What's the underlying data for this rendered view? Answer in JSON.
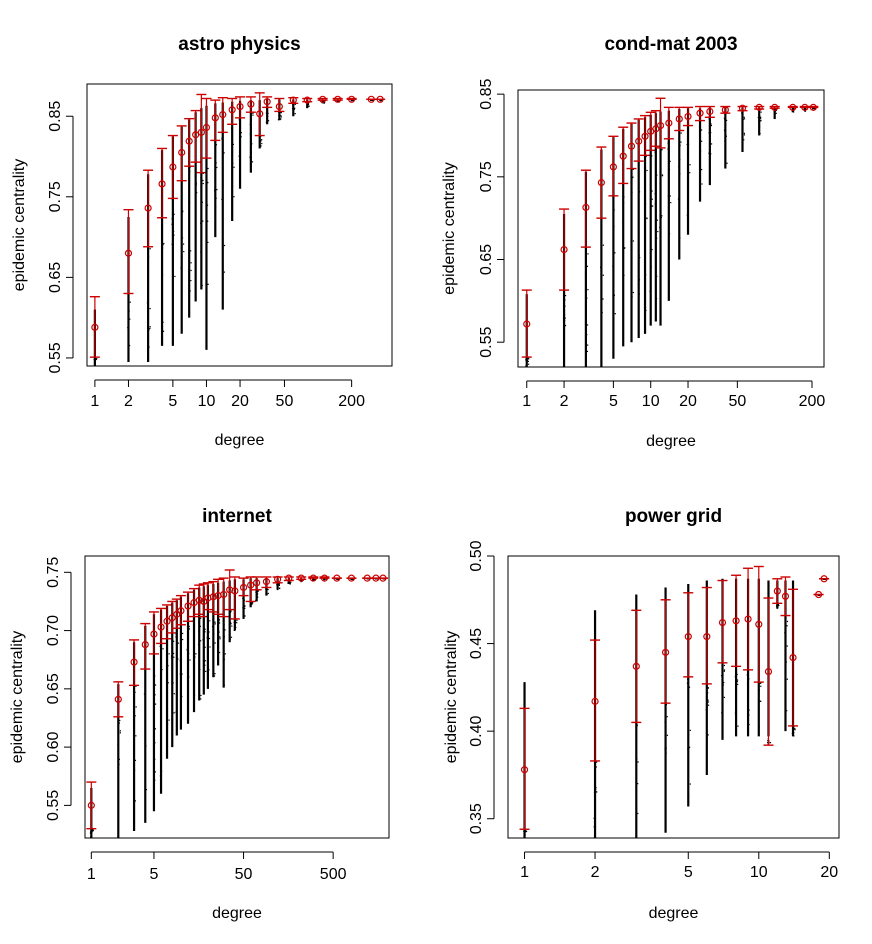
{
  "colors": {
    "mean": "#cc0000",
    "range": "#000000",
    "dots": "#000000"
  },
  "chart_data": [
    {
      "type": "scatter",
      "title": "astro physics",
      "xlabel": "degree",
      "ylabel": "epidemic centrality",
      "xscale": "log",
      "xlim": [
        0.85,
        460
      ],
      "ylim": [
        0.54,
        0.89
      ],
      "xticks": [
        1,
        2,
        5,
        10,
        20,
        50,
        200
      ],
      "xtick_labels": [
        "1",
        "2",
        "5",
        "10",
        "20",
        "50",
        "200"
      ],
      "yticks": [
        0.55,
        0.65,
        0.75,
        0.85
      ],
      "ytick_labels": [
        "0.55",
        "0.65",
        "0.75",
        "0.85"
      ],
      "series": [
        {
          "x": 1,
          "mean": 0.588,
          "lo": 0.551,
          "hi": 0.626,
          "min": 0.54,
          "max": 0.61
        },
        {
          "x": 2,
          "mean": 0.68,
          "lo": 0.63,
          "hi": 0.734,
          "min": 0.545,
          "max": 0.725
        },
        {
          "x": 3,
          "mean": 0.736,
          "lo": 0.688,
          "hi": 0.783,
          "min": 0.545,
          "max": 0.778
        },
        {
          "x": 4,
          "mean": 0.766,
          "lo": 0.724,
          "hi": 0.81,
          "min": 0.565,
          "max": 0.808
        },
        {
          "x": 5,
          "mean": 0.787,
          "lo": 0.748,
          "hi": 0.826,
          "min": 0.565,
          "max": 0.825
        },
        {
          "x": 6,
          "mean": 0.805,
          "lo": 0.77,
          "hi": 0.838,
          "min": 0.58,
          "max": 0.837
        },
        {
          "x": 7,
          "mean": 0.819,
          "lo": 0.788,
          "hi": 0.847,
          "min": 0.6,
          "max": 0.846
        },
        {
          "x": 8,
          "mean": 0.827,
          "lo": 0.793,
          "hi": 0.857,
          "min": 0.62,
          "max": 0.855
        },
        {
          "x": 9,
          "mean": 0.83,
          "lo": 0.78,
          "hi": 0.877,
          "min": 0.635,
          "max": 0.86
        },
        {
          "x": 10,
          "mean": 0.836,
          "lo": 0.798,
          "hi": 0.872,
          "min": 0.56,
          "max": 0.863
        },
        {
          "x": 12,
          "mean": 0.848,
          "lo": 0.82,
          "hi": 0.87,
          "min": 0.7,
          "max": 0.866
        },
        {
          "x": 14,
          "mean": 0.852,
          "lo": 0.83,
          "hi": 0.873,
          "min": 0.61,
          "max": 0.867
        },
        {
          "x": 17,
          "mean": 0.858,
          "lo": 0.84,
          "hi": 0.872,
          "min": 0.72,
          "max": 0.868
        },
        {
          "x": 20,
          "mean": 0.862,
          "lo": 0.848,
          "hi": 0.874,
          "min": 0.76,
          "max": 0.869
        },
        {
          "x": 25,
          "mean": 0.865,
          "lo": 0.855,
          "hi": 0.874,
          "min": 0.78,
          "max": 0.87
        },
        {
          "x": 30,
          "mean": 0.853,
          "lo": 0.826,
          "hi": 0.879,
          "min": 0.81,
          "max": 0.87
        },
        {
          "x": 35,
          "mean": 0.868,
          "lo": 0.861,
          "hi": 0.874,
          "min": 0.84,
          "max": 0.871
        },
        {
          "x": 45,
          "mean": 0.862,
          "lo": 0.856,
          "hi": 0.872,
          "min": 0.845,
          "max": 0.871
        },
        {
          "x": 60,
          "mean": 0.87,
          "lo": 0.866,
          "hi": 0.873,
          "min": 0.85,
          "max": 0.871
        },
        {
          "x": 80,
          "mean": 0.87,
          "lo": 0.868,
          "hi": 0.872,
          "min": 0.86,
          "max": 0.871
        },
        {
          "x": 110,
          "mean": 0.871,
          "lo": 0.87,
          "hi": 0.872,
          "min": 0.866,
          "max": 0.871
        },
        {
          "x": 150,
          "mean": 0.871,
          "lo": 0.87,
          "hi": 0.872,
          "min": 0.868,
          "max": 0.871
        },
        {
          "x": 200,
          "mean": 0.871,
          "lo": 0.871,
          "hi": 0.872,
          "min": 0.87,
          "max": 0.871
        },
        {
          "x": 300,
          "mean": 0.871,
          "lo": 0.871,
          "hi": 0.871,
          "min": 0.87,
          "max": 0.871
        },
        {
          "x": 360,
          "mean": 0.871,
          "lo": 0.871,
          "hi": 0.871,
          "min": 0.87,
          "max": 0.871
        }
      ]
    },
    {
      "type": "scatter",
      "title": "cond-mat 2003",
      "xlabel": "degree",
      "ylabel": "epidemic centrality",
      "xscale": "log",
      "xlim": [
        0.85,
        250
      ],
      "ylim": [
        0.52,
        0.855
      ],
      "xticks": [
        1,
        2,
        5,
        10,
        20,
        50,
        200
      ],
      "xtick_labels": [
        "1",
        "2",
        "5",
        "10",
        "20",
        "50",
        "200"
      ],
      "yticks": [
        0.55,
        0.65,
        0.75,
        0.85
      ],
      "ytick_labels": [
        "0.55",
        "0.65",
        "0.75",
        "0.85"
      ],
      "series": [
        {
          "x": 1,
          "mean": 0.572,
          "lo": 0.532,
          "hi": 0.613,
          "min": 0.52,
          "max": 0.608
        },
        {
          "x": 2,
          "mean": 0.662,
          "lo": 0.613,
          "hi": 0.711,
          "min": 0.52,
          "max": 0.705
        },
        {
          "x": 3,
          "mean": 0.713,
          "lo": 0.665,
          "hi": 0.758,
          "min": 0.52,
          "max": 0.756
        },
        {
          "x": 4,
          "mean": 0.743,
          "lo": 0.7,
          "hi": 0.786,
          "min": 0.52,
          "max": 0.783
        },
        {
          "x": 5,
          "mean": 0.762,
          "lo": 0.727,
          "hi": 0.799,
          "min": 0.53,
          "max": 0.798
        },
        {
          "x": 6,
          "mean": 0.775,
          "lo": 0.742,
          "hi": 0.81,
          "min": 0.545,
          "max": 0.808
        },
        {
          "x": 7,
          "mean": 0.787,
          "lo": 0.76,
          "hi": 0.815,
          "min": 0.55,
          "max": 0.814
        },
        {
          "x": 8,
          "mean": 0.793,
          "lo": 0.769,
          "hi": 0.82,
          "min": 0.555,
          "max": 0.819
        },
        {
          "x": 9,
          "mean": 0.799,
          "lo": 0.776,
          "hi": 0.824,
          "min": 0.56,
          "max": 0.822
        },
        {
          "x": 10,
          "mean": 0.805,
          "lo": 0.782,
          "hi": 0.828,
          "min": 0.57,
          "max": 0.825
        },
        {
          "x": 11,
          "mean": 0.808,
          "lo": 0.787,
          "hi": 0.83,
          "min": 0.575,
          "max": 0.827
        },
        {
          "x": 12,
          "mean": 0.812,
          "lo": 0.785,
          "hi": 0.845,
          "min": 0.57,
          "max": 0.829
        },
        {
          "x": 14,
          "mean": 0.815,
          "lo": 0.796,
          "hi": 0.834,
          "min": 0.6,
          "max": 0.83
        },
        {
          "x": 17,
          "mean": 0.82,
          "lo": 0.806,
          "hi": 0.834,
          "min": 0.65,
          "max": 0.832
        },
        {
          "x": 20,
          "mean": 0.823,
          "lo": 0.812,
          "hi": 0.834,
          "min": 0.68,
          "max": 0.833
        },
        {
          "x": 25,
          "mean": 0.827,
          "lo": 0.818,
          "hi": 0.835,
          "min": 0.72,
          "max": 0.833
        },
        {
          "x": 30,
          "mean": 0.829,
          "lo": 0.822,
          "hi": 0.835,
          "min": 0.74,
          "max": 0.834
        },
        {
          "x": 40,
          "mean": 0.831,
          "lo": 0.827,
          "hi": 0.835,
          "min": 0.76,
          "max": 0.834
        },
        {
          "x": 55,
          "mean": 0.833,
          "lo": 0.83,
          "hi": 0.835,
          "min": 0.78,
          "max": 0.834
        },
        {
          "x": 75,
          "mean": 0.834,
          "lo": 0.832,
          "hi": 0.835,
          "min": 0.8,
          "max": 0.834
        },
        {
          "x": 100,
          "mean": 0.834,
          "lo": 0.833,
          "hi": 0.835,
          "min": 0.82,
          "max": 0.834
        },
        {
          "x": 140,
          "mean": 0.834,
          "lo": 0.834,
          "hi": 0.835,
          "min": 0.828,
          "max": 0.834
        },
        {
          "x": 175,
          "mean": 0.834,
          "lo": 0.834,
          "hi": 0.835,
          "min": 0.83,
          "max": 0.834
        },
        {
          "x": 205,
          "mean": 0.834,
          "lo": 0.834,
          "hi": 0.835,
          "min": 0.832,
          "max": 0.834
        }
      ]
    },
    {
      "type": "scatter",
      "title": "internet",
      "xlabel": "degree",
      "ylabel": "epidemic centrality",
      "xscale": "log",
      "xlim": [
        0.85,
        2100
      ],
      "ylim": [
        0.522,
        0.764
      ],
      "xticks": [
        1,
        5,
        50,
        500
      ],
      "xtick_labels": [
        "1",
        "5",
        "50",
        "500"
      ],
      "yticks": [
        0.55,
        0.6,
        0.65,
        0.7,
        0.75
      ],
      "ytick_labels": [
        "0.55",
        "0.60",
        "0.65",
        "0.70",
        "0.75"
      ],
      "series": [
        {
          "x": 1,
          "mean": 0.55,
          "lo": 0.53,
          "hi": 0.57,
          "min": 0.522,
          "max": 0.565
        },
        {
          "x": 2,
          "mean": 0.641,
          "lo": 0.626,
          "hi": 0.656,
          "min": 0.522,
          "max": 0.654
        },
        {
          "x": 3,
          "mean": 0.673,
          "lo": 0.653,
          "hi": 0.692,
          "min": 0.528,
          "max": 0.69
        },
        {
          "x": 4,
          "mean": 0.688,
          "lo": 0.667,
          "hi": 0.706,
          "min": 0.535,
          "max": 0.704
        },
        {
          "x": 5,
          "mean": 0.697,
          "lo": 0.68,
          "hi": 0.716,
          "min": 0.545,
          "max": 0.714
        },
        {
          "x": 6,
          "mean": 0.703,
          "lo": 0.689,
          "hi": 0.719,
          "min": 0.56,
          "max": 0.718
        },
        {
          "x": 7,
          "mean": 0.708,
          "lo": 0.693,
          "hi": 0.722,
          "min": 0.59,
          "max": 0.721
        },
        {
          "x": 8,
          "mean": 0.711,
          "lo": 0.698,
          "hi": 0.725,
          "min": 0.6,
          "max": 0.724
        },
        {
          "x": 9,
          "mean": 0.714,
          "lo": 0.702,
          "hi": 0.727,
          "min": 0.61,
          "max": 0.726
        },
        {
          "x": 10,
          "mean": 0.717,
          "lo": 0.705,
          "hi": 0.73,
          "min": 0.615,
          "max": 0.729
        },
        {
          "x": 12,
          "mean": 0.721,
          "lo": 0.708,
          "hi": 0.733,
          "min": 0.62,
          "max": 0.732
        },
        {
          "x": 14,
          "mean": 0.724,
          "lo": 0.712,
          "hi": 0.736,
          "min": 0.63,
          "max": 0.735
        },
        {
          "x": 16,
          "mean": 0.726,
          "lo": 0.714,
          "hi": 0.739,
          "min": 0.64,
          "max": 0.737
        },
        {
          "x": 18,
          "mean": 0.725,
          "lo": 0.712,
          "hi": 0.74,
          "min": 0.645,
          "max": 0.738
        },
        {
          "x": 20,
          "mean": 0.728,
          "lo": 0.718,
          "hi": 0.741,
          "min": 0.65,
          "max": 0.739
        },
        {
          "x": 23,
          "mean": 0.729,
          "lo": 0.716,
          "hi": 0.742,
          "min": 0.66,
          "max": 0.74
        },
        {
          "x": 26,
          "mean": 0.73,
          "lo": 0.714,
          "hi": 0.744,
          "min": 0.67,
          "max": 0.741
        },
        {
          "x": 30,
          "mean": 0.731,
          "lo": 0.712,
          "hi": 0.745,
          "min": 0.651,
          "max": 0.742
        },
        {
          "x": 35,
          "mean": 0.735,
          "lo": 0.718,
          "hi": 0.752,
          "min": 0.69,
          "max": 0.743
        },
        {
          "x": 40,
          "mean": 0.734,
          "lo": 0.71,
          "hi": 0.746,
          "min": 0.7,
          "max": 0.744
        },
        {
          "x": 50,
          "mean": 0.737,
          "lo": 0.73,
          "hi": 0.745,
          "min": 0.71,
          "max": 0.744
        },
        {
          "x": 60,
          "mean": 0.739,
          "lo": 0.725,
          "hi": 0.746,
          "min": 0.72,
          "max": 0.745
        },
        {
          "x": 70,
          "mean": 0.741,
          "lo": 0.735,
          "hi": 0.746,
          "min": 0.725,
          "max": 0.745
        },
        {
          "x": 90,
          "mean": 0.742,
          "lo": 0.737,
          "hi": 0.746,
          "min": 0.73,
          "max": 0.745
        },
        {
          "x": 120,
          "mean": 0.744,
          "lo": 0.741,
          "hi": 0.746,
          "min": 0.735,
          "max": 0.745
        },
        {
          "x": 160,
          "mean": 0.745,
          "lo": 0.743,
          "hi": 0.746,
          "min": 0.74,
          "max": 0.745
        },
        {
          "x": 220,
          "mean": 0.745,
          "lo": 0.744,
          "hi": 0.746,
          "min": 0.742,
          "max": 0.745
        },
        {
          "x": 300,
          "mean": 0.745,
          "lo": 0.745,
          "hi": 0.746,
          "min": 0.743,
          "max": 0.745
        },
        {
          "x": 400,
          "mean": 0.745,
          "lo": 0.745,
          "hi": 0.746,
          "min": 0.744,
          "max": 0.745
        },
        {
          "x": 550,
          "mean": 0.745,
          "lo": 0.745,
          "hi": 0.745,
          "min": 0.744,
          "max": 0.745
        },
        {
          "x": 800,
          "mean": 0.745,
          "lo": 0.745,
          "hi": 0.745,
          "min": 0.744,
          "max": 0.745
        },
        {
          "x": 1200,
          "mean": 0.745,
          "lo": 0.745,
          "hi": 0.745,
          "min": 0.745,
          "max": 0.745
        },
        {
          "x": 1500,
          "mean": 0.745,
          "lo": 0.745,
          "hi": 0.745,
          "min": 0.745,
          "max": 0.745
        },
        {
          "x": 1800,
          "mean": 0.745,
          "lo": 0.745,
          "hi": 0.745,
          "min": 0.745,
          "max": 0.745
        }
      ]
    },
    {
      "type": "scatter",
      "title": "power grid",
      "xlabel": "degree",
      "ylabel": "epidemic centrality",
      "xscale": "log",
      "xlim": [
        0.85,
        22
      ],
      "ylim": [
        0.339,
        0.5
      ],
      "xticks": [
        1,
        2,
        5,
        10,
        20
      ],
      "xtick_labels": [
        "1",
        "2",
        "5",
        "10",
        "20"
      ],
      "yticks": [
        0.35,
        0.4,
        0.45,
        0.5
      ],
      "ytick_labels": [
        "0.35",
        "0.40",
        "0.45",
        "0.50"
      ],
      "series": [
        {
          "x": 1,
          "mean": 0.378,
          "lo": 0.344,
          "hi": 0.413,
          "min": 0.339,
          "max": 0.428
        },
        {
          "x": 2,
          "mean": 0.417,
          "lo": 0.383,
          "hi": 0.452,
          "min": 0.339,
          "max": 0.469
        },
        {
          "x": 3,
          "mean": 0.437,
          "lo": 0.405,
          "hi": 0.469,
          "min": 0.339,
          "max": 0.478
        },
        {
          "x": 4,
          "mean": 0.445,
          "lo": 0.416,
          "hi": 0.475,
          "min": 0.342,
          "max": 0.482
        },
        {
          "x": 5,
          "mean": 0.454,
          "lo": 0.431,
          "hi": 0.479,
          "min": 0.357,
          "max": 0.484
        },
        {
          "x": 6,
          "mean": 0.454,
          "lo": 0.427,
          "hi": 0.482,
          "min": 0.375,
          "max": 0.486
        },
        {
          "x": 7,
          "mean": 0.462,
          "lo": 0.439,
          "hi": 0.486,
          "min": 0.395,
          "max": 0.487
        },
        {
          "x": 8,
          "mean": 0.463,
          "lo": 0.437,
          "hi": 0.489,
          "min": 0.397,
          "max": 0.487
        },
        {
          "x": 9,
          "mean": 0.464,
          "lo": 0.435,
          "hi": 0.493,
          "min": 0.397,
          "max": 0.487
        },
        {
          "x": 10,
          "mean": 0.461,
          "lo": 0.428,
          "hi": 0.494,
          "min": 0.397,
          "max": 0.487
        },
        {
          "x": 11,
          "mean": 0.434,
          "lo": 0.392,
          "hi": 0.476,
          "min": 0.397,
          "max": 0.486
        },
        {
          "x": 12,
          "mean": 0.48,
          "lo": 0.473,
          "hi": 0.487,
          "min": 0.47,
          "max": 0.486
        },
        {
          "x": 13,
          "mean": 0.477,
          "lo": 0.466,
          "hi": 0.488,
          "min": 0.4,
          "max": 0.486
        },
        {
          "x": 14,
          "mean": 0.442,
          "lo": 0.403,
          "hi": 0.481,
          "min": 0.397,
          "max": 0.486
        },
        {
          "x": 18,
          "mean": 0.478,
          "lo": 0.478,
          "hi": 0.478,
          "min": 0.478,
          "max": 0.478
        },
        {
          "x": 19,
          "mean": 0.487,
          "lo": 0.487,
          "hi": 0.487,
          "min": 0.487,
          "max": 0.487
        }
      ]
    }
  ]
}
